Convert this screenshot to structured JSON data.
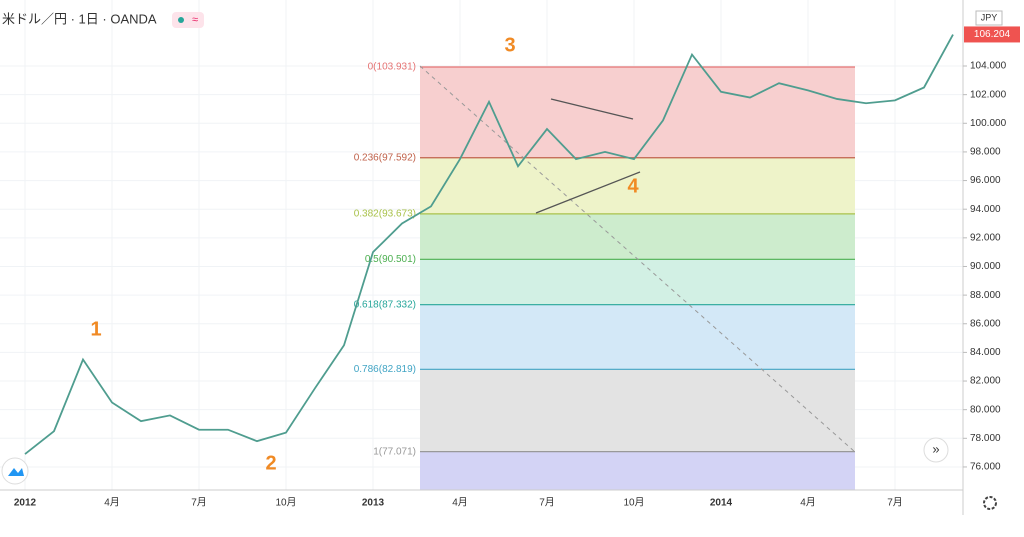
{
  "chart_data": {
    "type": "line",
    "title": "米ドル／円 · 1日 · OANDA",
    "currency": "JPY",
    "last_price": 106.204,
    "x": [
      "2012-01",
      "2012-02",
      "2012-03",
      "2012-04",
      "2012-05",
      "2012-06",
      "2012-07",
      "2012-08",
      "2012-09",
      "2012-10",
      "2012-11",
      "2012-12",
      "2013-01",
      "2013-02",
      "2013-03",
      "2013-04",
      "2013-05",
      "2013-06",
      "2013-07",
      "2013-08",
      "2013-09",
      "2013-10",
      "2013-11",
      "2013-12",
      "2014-01",
      "2014-02",
      "2014-03",
      "2014-04",
      "2014-05",
      "2014-06",
      "2014-07",
      "2014-08",
      "2014-09"
    ],
    "series": [
      {
        "name": "USD/JPY",
        "color": "#4f9d8f",
        "values": [
          76.9,
          78.5,
          83.5,
          80.5,
          79.2,
          79.6,
          78.6,
          78.6,
          77.8,
          78.4,
          81.5,
          84.5,
          91.0,
          93.0,
          94.2,
          97.5,
          101.5,
          97.0,
          99.6,
          97.5,
          98.0,
          97.5,
          100.2,
          104.8,
          102.2,
          101.8,
          102.8,
          102.3,
          101.7,
          101.4,
          101.6,
          102.5,
          106.2
        ]
      }
    ],
    "ylim": [
      74.39,
      108.61
    ],
    "yticks": [
      {
        "value": 76,
        "label": "76.000"
      },
      {
        "value": 78,
        "label": "78.000"
      },
      {
        "value": 80,
        "label": "80.000"
      },
      {
        "value": 82,
        "label": "82.000"
      },
      {
        "value": 84,
        "label": "84.000"
      },
      {
        "value": 86,
        "label": "86.000"
      },
      {
        "value": 88,
        "label": "88.000"
      },
      {
        "value": 90,
        "label": "90.000"
      },
      {
        "value": 92,
        "label": "92.000"
      },
      {
        "value": 94,
        "label": "94.000"
      },
      {
        "value": 96,
        "label": "96.000"
      },
      {
        "value": 98,
        "label": "98.000"
      },
      {
        "value": 100,
        "label": "100.000"
      },
      {
        "value": 102,
        "label": "102.000"
      },
      {
        "value": 104,
        "label": "104.000"
      }
    ],
    "xticks": [
      {
        "value": "2012-01",
        "label": "2012"
      },
      {
        "value": "2012-04",
        "label": "4月"
      },
      {
        "value": "2012-07",
        "label": "7月"
      },
      {
        "value": "2012-10",
        "label": "10月"
      },
      {
        "value": "2013-01",
        "label": "2013"
      },
      {
        "value": "2013-04",
        "label": "4月"
      },
      {
        "value": "2013-07",
        "label": "7月"
      },
      {
        "value": "2013-10",
        "label": "10月"
      },
      {
        "value": "2014-01",
        "label": "2014"
      },
      {
        "value": "2014-04",
        "label": "4月"
      },
      {
        "value": "2014-07",
        "label": "7月"
      }
    ],
    "grid": true,
    "fib_levels": [
      {
        "value": 103.931,
        "label": "0(103.931)",
        "color": "#e57373",
        "fill": "#f7cfcf"
      },
      {
        "value": 97.592,
        "label": "0.236(97.592)",
        "color": "#c0624b",
        "fill": "#eef3c9"
      },
      {
        "value": 93.673,
        "label": "0.382(93.673)",
        "color": "#a9c24a",
        "fill": "#cdeccd"
      },
      {
        "value": 90.501,
        "label": "0.5(90.501)",
        "color": "#4caf50",
        "fill": "#d2f0e4"
      },
      {
        "value": 87.332,
        "label": "0.618(87.332)",
        "color": "#26a69a",
        "fill": "#d3e8f7"
      },
      {
        "value": 82.819,
        "label": "0.786(82.819)",
        "color": "#42a5c5",
        "fill": "#e3e3e3"
      },
      {
        "value": 77.071,
        "label": "1(77.071)",
        "color": "#999999",
        "fill": "#d3d3f5"
      }
    ],
    "annotations": [
      "1",
      "2",
      "3",
      "4"
    ]
  }
}
